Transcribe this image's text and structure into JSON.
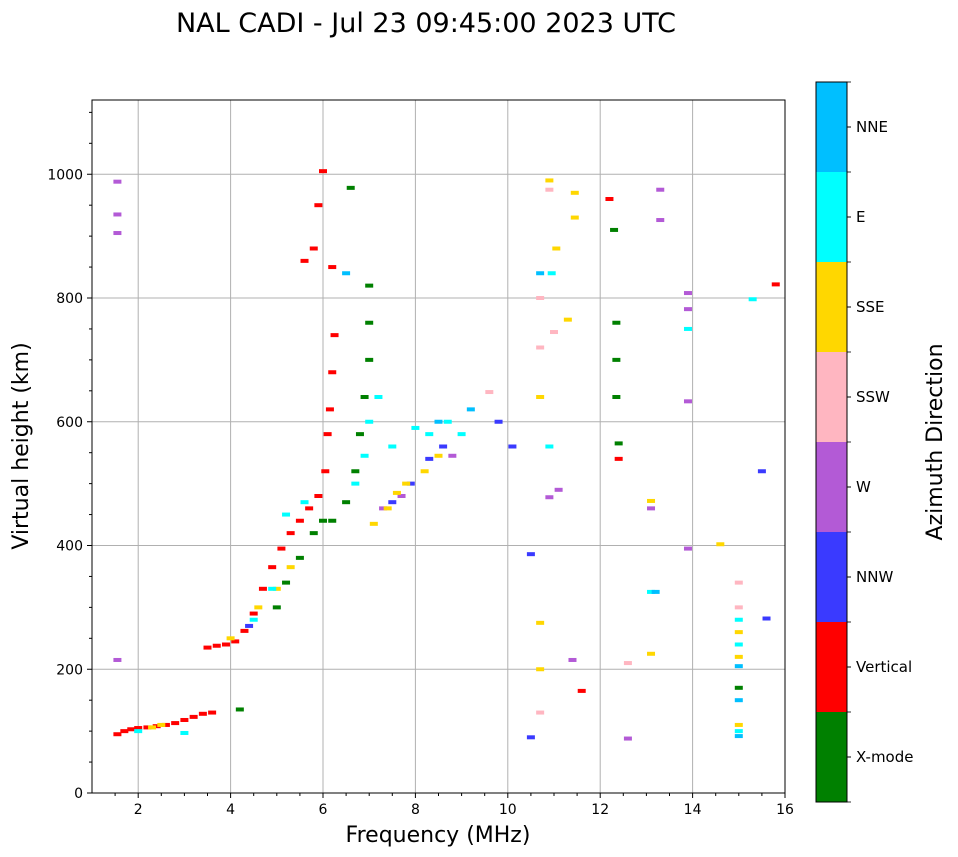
{
  "chart_data": {
    "type": "scatter",
    "title": "NAL CADI - Jul 23 09:45:00 2023 UTC",
    "xlabel": "Frequency (MHz)",
    "ylabel": "Virtual height (km)",
    "xlim": [
      1,
      16
    ],
    "ylim": [
      0,
      1120
    ],
    "xticks": [
      "2",
      "4",
      "6",
      "8",
      "10",
      "12",
      "14",
      "16"
    ],
    "yticks": [
      "0",
      "200",
      "400",
      "600",
      "800",
      "1000"
    ],
    "grid": true,
    "colorbar": {
      "title": "Azimuth Direction",
      "categories": [
        {
          "name": "X-mode",
          "color": "#008000"
        },
        {
          "name": "Vertical",
          "color": "#ff0000"
        },
        {
          "name": "NNW",
          "color": "#3a3aff"
        },
        {
          "name": "W",
          "color": "#b35ad6"
        },
        {
          "name": "SSW",
          "color": "#ffb6c1"
        },
        {
          "name": "SSE",
          "color": "#ffd700"
        },
        {
          "name": "E",
          "color": "#00ffff"
        },
        {
          "name": "NNE",
          "color": "#00bfff"
        }
      ]
    },
    "series": [
      {
        "name": "Vertical",
        "points": [
          [
            1.55,
            95
          ],
          [
            1.7,
            100
          ],
          [
            1.85,
            103
          ],
          [
            2.0,
            105
          ],
          [
            2.2,
            106
          ],
          [
            2.4,
            108
          ],
          [
            2.6,
            110
          ],
          [
            2.8,
            113
          ],
          [
            3.0,
            118
          ],
          [
            3.2,
            123
          ],
          [
            3.4,
            128
          ],
          [
            3.6,
            130
          ],
          [
            3.5,
            235
          ],
          [
            3.7,
            238
          ],
          [
            3.9,
            240
          ],
          [
            4.1,
            245
          ],
          [
            4.3,
            262
          ],
          [
            4.5,
            290
          ],
          [
            4.7,
            330
          ],
          [
            4.9,
            365
          ],
          [
            5.1,
            395
          ],
          [
            5.3,
            420
          ],
          [
            5.5,
            440
          ],
          [
            5.7,
            460
          ],
          [
            5.9,
            480
          ],
          [
            6.05,
            520
          ],
          [
            6.1,
            580
          ],
          [
            6.15,
            620
          ],
          [
            6.2,
            680
          ],
          [
            6.25,
            740
          ],
          [
            6.2,
            850
          ],
          [
            5.8,
            880
          ],
          [
            5.6,
            860
          ],
          [
            5.9,
            950
          ],
          [
            6.0,
            1005
          ],
          [
            12.2,
            960
          ],
          [
            12.4,
            540
          ],
          [
            15.8,
            822
          ],
          [
            11.6,
            165
          ]
        ]
      },
      {
        "name": "X-mode",
        "points": [
          [
            5.0,
            300
          ],
          [
            5.2,
            340
          ],
          [
            5.5,
            380
          ],
          [
            5.8,
            420
          ],
          [
            6.0,
            440
          ],
          [
            6.2,
            440
          ],
          [
            6.5,
            470
          ],
          [
            6.7,
            520
          ],
          [
            6.8,
            580
          ],
          [
            6.9,
            640
          ],
          [
            7.0,
            700
          ],
          [
            7.0,
            760
          ],
          [
            7.0,
            820
          ],
          [
            6.6,
            978
          ],
          [
            4.2,
            135
          ],
          [
            12.3,
            910
          ],
          [
            12.4,
            565
          ],
          [
            15.0,
            170
          ],
          [
            12.35,
            640
          ],
          [
            12.35,
            700
          ],
          [
            12.35,
            760
          ]
        ]
      },
      {
        "name": "NNW",
        "points": [
          [
            4.4,
            270
          ],
          [
            7.5,
            470
          ],
          [
            7.9,
            500
          ],
          [
            8.3,
            540
          ],
          [
            8.6,
            560
          ],
          [
            9.8,
            600
          ],
          [
            10.1,
            560
          ],
          [
            10.5,
            90
          ],
          [
            15.5,
            520
          ],
          [
            15.6,
            282
          ],
          [
            10.5,
            386
          ]
        ]
      },
      {
        "name": "W",
        "points": [
          [
            1.55,
            988
          ],
          [
            1.55,
            935
          ],
          [
            1.55,
            905
          ],
          [
            1.55,
            215
          ],
          [
            7.3,
            460
          ],
          [
            7.7,
            480
          ],
          [
            8.8,
            545
          ],
          [
            10.9,
            478
          ],
          [
            11.1,
            490
          ],
          [
            11.4,
            215
          ],
          [
            12.6,
            88
          ],
          [
            13.3,
            975
          ],
          [
            13.3,
            926
          ],
          [
            13.1,
            460
          ],
          [
            13.9,
            633
          ],
          [
            13.9,
            395
          ],
          [
            13.9,
            808
          ],
          [
            13.9,
            782
          ]
        ]
      },
      {
        "name": "SSW",
        "points": [
          [
            10.7,
            130
          ],
          [
            10.7,
            720
          ],
          [
            10.7,
            800
          ],
          [
            10.9,
            975
          ],
          [
            11.0,
            745
          ],
          [
            12.6,
            210
          ],
          [
            15.0,
            300
          ],
          [
            15.0,
            340
          ],
          [
            9.6,
            648
          ]
        ]
      },
      {
        "name": "SSE",
        "points": [
          [
            2.3,
            106
          ],
          [
            2.5,
            110
          ],
          [
            4.0,
            250
          ],
          [
            4.6,
            300
          ],
          [
            5.0,
            330
          ],
          [
            5.3,
            365
          ],
          [
            7.1,
            435
          ],
          [
            7.4,
            460
          ],
          [
            7.6,
            485
          ],
          [
            7.8,
            500
          ],
          [
            8.2,
            520
          ],
          [
            8.5,
            545
          ],
          [
            10.7,
            275
          ],
          [
            10.7,
            200
          ],
          [
            10.7,
            640
          ],
          [
            10.9,
            990
          ],
          [
            11.05,
            880
          ],
          [
            11.3,
            765
          ],
          [
            11.45,
            970
          ],
          [
            11.45,
            930
          ],
          [
            13.1,
            472
          ],
          [
            13.1,
            225
          ],
          [
            14.6,
            402
          ],
          [
            15.0,
            110
          ],
          [
            15.0,
            220
          ],
          [
            15.0,
            260
          ]
        ]
      },
      {
        "name": "E",
        "points": [
          [
            2.0,
            100
          ],
          [
            3.0,
            97
          ],
          [
            4.5,
            280
          ],
          [
            4.9,
            330
          ],
          [
            5.2,
            450
          ],
          [
            5.6,
            470
          ],
          [
            6.7,
            500
          ],
          [
            6.9,
            545
          ],
          [
            7.0,
            600
          ],
          [
            7.2,
            640
          ],
          [
            7.5,
            560
          ],
          [
            8.0,
            590
          ],
          [
            8.3,
            580
          ],
          [
            8.7,
            600
          ],
          [
            9.0,
            580
          ],
          [
            10.9,
            560
          ],
          [
            10.95,
            840
          ],
          [
            13.1,
            325
          ],
          [
            15.0,
            100
          ],
          [
            15.0,
            240
          ],
          [
            15.0,
            280
          ],
          [
            15.3,
            798
          ],
          [
            13.9,
            750
          ]
        ]
      },
      {
        "name": "NNE",
        "points": [
          [
            6.5,
            840
          ],
          [
            8.5,
            600
          ],
          [
            9.2,
            620
          ],
          [
            10.7,
            840
          ],
          [
            15.0,
            92
          ],
          [
            15.0,
            150
          ],
          [
            15.0,
            205
          ],
          [
            13.2,
            325
          ]
        ]
      }
    ]
  }
}
